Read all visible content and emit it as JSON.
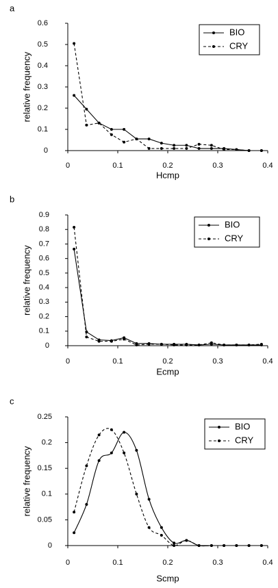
{
  "chart_data": [
    {
      "type": "line",
      "panel_label": "a",
      "xlabel": "Hcmp",
      "ylabel": "relative frequency",
      "xlim": [
        0,
        0.4
      ],
      "ylim": [
        0,
        0.6
      ],
      "xticks": [
        "0",
        "0.1",
        "0.2",
        "0.3",
        "0.4"
      ],
      "yticks": [
        "0",
        "0.1",
        "0.2",
        "0.3",
        "0.4",
        "0.5",
        "0.6"
      ],
      "smooth": false,
      "legend_position": "top-right",
      "x": [
        0.0125,
        0.0375,
        0.0625,
        0.0875,
        0.1125,
        0.1375,
        0.1625,
        0.1875,
        0.2125,
        0.2375,
        0.2625,
        0.2875,
        0.3125,
        0.3375,
        0.3625,
        0.3875
      ],
      "series": [
        {
          "name": "BIO",
          "style": "solid",
          "values": [
            0.26,
            0.195,
            0.13,
            0.1,
            0.1,
            0.055,
            0.055,
            0.035,
            0.025,
            0.025,
            0.01,
            0.01,
            0.01,
            0.005,
            0.0,
            0.0
          ]
        },
        {
          "name": "CRY",
          "style": "dashed",
          "values": [
            0.505,
            0.12,
            0.13,
            0.075,
            0.04,
            0.055,
            0.01,
            0.01,
            0.01,
            0.01,
            0.03,
            0.025,
            0.005,
            0.005,
            0.0,
            0.0
          ]
        }
      ]
    },
    {
      "type": "line",
      "panel_label": "b",
      "xlabel": "Ecmp",
      "ylabel": "relative frequency",
      "xlim": [
        0,
        0.4
      ],
      "ylim": [
        0,
        0.9
      ],
      "xticks": [
        "0",
        "0.1",
        "0.2",
        "0.3",
        "0.4"
      ],
      "yticks": [
        "0",
        "0.1",
        "0.2",
        "0.3",
        "0.4",
        "0.5",
        "0.6",
        "0.7",
        "0.8",
        "0.9"
      ],
      "smooth": false,
      "legend_position": "top-right",
      "x": [
        0.0125,
        0.0375,
        0.0625,
        0.0875,
        0.1125,
        0.1375,
        0.1625,
        0.1875,
        0.2125,
        0.2375,
        0.2625,
        0.2875,
        0.3125,
        0.3375,
        0.3625,
        0.3875
      ],
      "series": [
        {
          "name": "BIO",
          "style": "solid",
          "values": [
            0.665,
            0.095,
            0.04,
            0.035,
            0.055,
            0.015,
            0.015,
            0.01,
            0.01,
            0.01,
            0.005,
            0.01,
            0.005,
            0.005,
            0.005,
            0.005
          ]
        },
        {
          "name": "CRY",
          "style": "dashed",
          "values": [
            0.815,
            0.06,
            0.03,
            0.03,
            0.045,
            0.005,
            0.01,
            0.01,
            0.005,
            0.005,
            0.005,
            0.02,
            0.005,
            0.005,
            0.005,
            0.01
          ]
        }
      ]
    },
    {
      "type": "line",
      "panel_label": "c",
      "xlabel": "Scmp",
      "ylabel": "relative frequency",
      "xlim": [
        0,
        0.4
      ],
      "ylim": [
        0,
        0.25
      ],
      "xticks": [
        "0",
        "0.1",
        "0.2",
        "0.3",
        "0.4"
      ],
      "yticks": [
        "0",
        "0.05",
        "0.1",
        "0.15",
        "0.2",
        "0.25"
      ],
      "smooth": true,
      "legend_position": "top-right",
      "x": [
        0.0125,
        0.0375,
        0.0625,
        0.0875,
        0.1125,
        0.1375,
        0.1625,
        0.1875,
        0.2125,
        0.2375,
        0.2625,
        0.2875,
        0.3125,
        0.3375,
        0.3625,
        0.3875
      ],
      "series": [
        {
          "name": "BIO",
          "style": "solid",
          "values": [
            0.025,
            0.08,
            0.165,
            0.18,
            0.22,
            0.185,
            0.09,
            0.035,
            0.005,
            0.01,
            0.0,
            0.0,
            0.0,
            0.0,
            0.0,
            0.0
          ]
        },
        {
          "name": "CRY",
          "style": "dashed",
          "values": [
            0.065,
            0.155,
            0.215,
            0.225,
            0.18,
            0.1,
            0.035,
            0.02,
            0.0,
            0.01,
            0.0,
            0.0,
            0.0,
            0.0,
            0.0,
            0.0
          ]
        }
      ]
    }
  ]
}
